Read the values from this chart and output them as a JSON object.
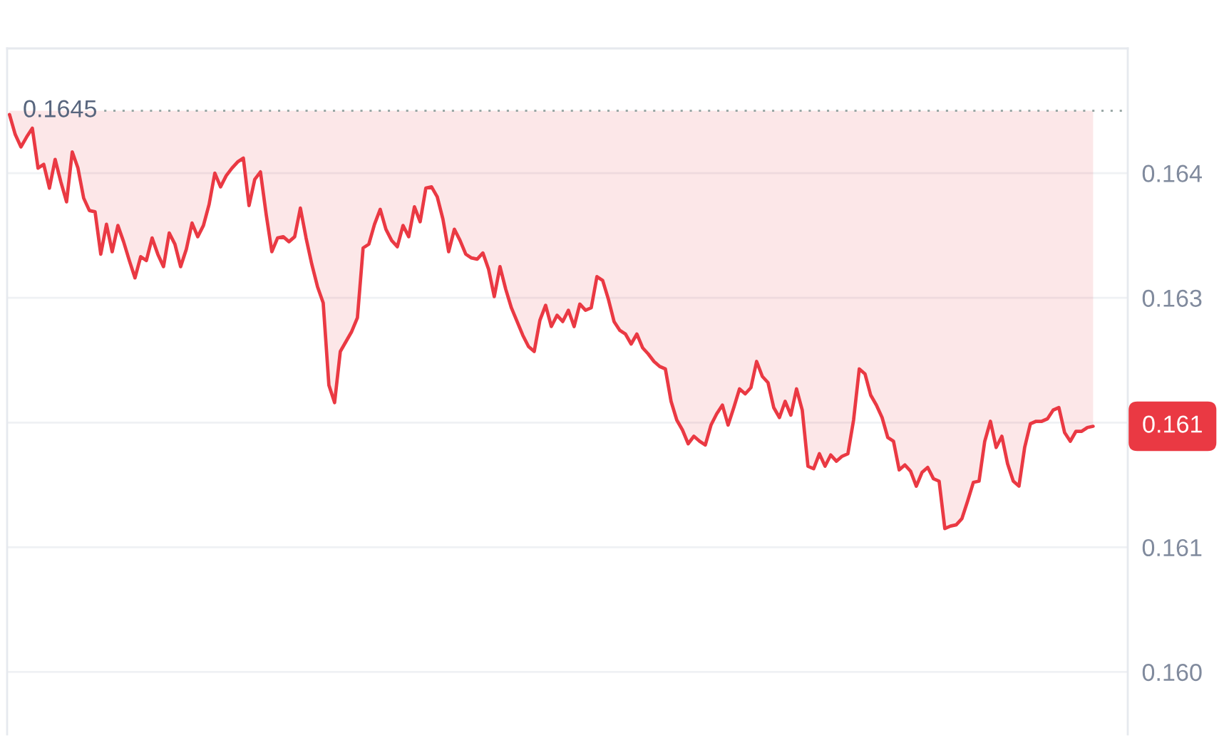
{
  "chart_data": {
    "type": "line",
    "categories": [
      null,
      null,
      null,
      null,
      null,
      null,
      null,
      null,
      null,
      null,
      null,
      null,
      null,
      null,
      null,
      null,
      null,
      null,
      null,
      null,
      null,
      null,
      null,
      null,
      null,
      null,
      null,
      null,
      null,
      null,
      null,
      null,
      null,
      null,
      null,
      null,
      null,
      null,
      null,
      null,
      null,
      null,
      null,
      null,
      null,
      null,
      null,
      null,
      null,
      null,
      null,
      null,
      null,
      null,
      null,
      null,
      null,
      null,
      null,
      null,
      null,
      null,
      null,
      null,
      null,
      null,
      null,
      null,
      null,
      null,
      null,
      null,
      null,
      null,
      null,
      null,
      null,
      null,
      null,
      null,
      null,
      null,
      null,
      null,
      null,
      null,
      null,
      null,
      null,
      null,
      null,
      null,
      null,
      null,
      null,
      null,
      null,
      null,
      null,
      null,
      null,
      null,
      null,
      null,
      null,
      null,
      null,
      null,
      null,
      null,
      null,
      null,
      null,
      null,
      null,
      null,
      null,
      null,
      null,
      null,
      null,
      null,
      null,
      null,
      null,
      null,
      null,
      null,
      null,
      null,
      null,
      null,
      null,
      null,
      null,
      null,
      null,
      null,
      null,
      null,
      null,
      null,
      null,
      null,
      null,
      null,
      null,
      null,
      null,
      null,
      null,
      null,
      null,
      null,
      null,
      null,
      null,
      null,
      null,
      null,
      null,
      null,
      null,
      null,
      null,
      null,
      null,
      null,
      null,
      null,
      null,
      null,
      null,
      null,
      null,
      null,
      null,
      null,
      null,
      null,
      null,
      null,
      null,
      null,
      null,
      null,
      null,
      null,
      null,
      null,
      null
    ],
    "series": [
      {
        "color": "#ea3943",
        "values": [
          0.16447,
          0.16431,
          0.16421,
          0.16429,
          0.16436,
          0.16404,
          0.16407,
          0.16388,
          0.16411,
          0.16393,
          0.16377,
          0.16417,
          0.16404,
          0.1638,
          0.1637,
          0.16369,
          0.16335,
          0.16359,
          0.16337,
          0.16358,
          0.16345,
          0.1633,
          0.16316,
          0.16333,
          0.1633,
          0.16348,
          0.16335,
          0.16325,
          0.16352,
          0.16343,
          0.16325,
          0.16339,
          0.1636,
          0.16349,
          0.16358,
          0.16375,
          0.164,
          0.16389,
          0.16398,
          0.16404,
          0.16409,
          0.16412,
          0.16374,
          0.16395,
          0.16401,
          0.16367,
          0.16337,
          0.16348,
          0.16349,
          0.16345,
          0.16349,
          0.16372,
          0.16348,
          0.16327,
          0.16309,
          0.16296,
          0.1623,
          0.16216,
          0.16257,
          0.16265,
          0.16273,
          0.16284,
          0.1634,
          0.16343,
          0.16359,
          0.16371,
          0.16355,
          0.16346,
          0.16341,
          0.16358,
          0.16349,
          0.16373,
          0.16361,
          0.16388,
          0.16389,
          0.16381,
          0.16363,
          0.16337,
          0.16355,
          0.16346,
          0.16335,
          0.16332,
          0.16331,
          0.16336,
          0.16323,
          0.16301,
          0.16325,
          0.16307,
          0.16292,
          0.16281,
          0.1627,
          0.16261,
          0.16257,
          0.16282,
          0.16294,
          0.16277,
          0.16286,
          0.16281,
          0.1629,
          0.16277,
          0.16295,
          0.1629,
          0.16292,
          0.16317,
          0.16314,
          0.16299,
          0.16281,
          0.16274,
          0.16271,
          0.16263,
          0.16271,
          0.1626,
          0.16255,
          0.16249,
          0.16245,
          0.16243,
          0.16217,
          0.16202,
          0.16194,
          0.16183,
          0.16189,
          0.16185,
          0.16182,
          0.16198,
          0.16207,
          0.16214,
          0.16198,
          0.16212,
          0.16227,
          0.16223,
          0.16228,
          0.16249,
          0.16237,
          0.16232,
          0.16212,
          0.16204,
          0.16217,
          0.16206,
          0.16227,
          0.1621,
          0.16165,
          0.16163,
          0.16175,
          0.16165,
          0.16174,
          0.16169,
          0.16173,
          0.16175,
          0.16202,
          0.16243,
          0.16239,
          0.16222,
          0.16214,
          0.16204,
          0.16188,
          0.16185,
          0.16162,
          0.16166,
          0.16161,
          0.16149,
          0.1616,
          0.16164,
          0.16155,
          0.16153,
          0.16115,
          0.16117,
          0.16118,
          0.16123,
          0.16137,
          0.16152,
          0.16153,
          0.16185,
          0.16201,
          0.1618,
          0.16189,
          0.16167,
          0.16153,
          0.16149,
          0.1618,
          0.16199,
          0.16201,
          0.16201,
          0.16203,
          0.1621,
          0.16212,
          0.16192,
          0.16185,
          0.16193,
          0.16193,
          0.16196,
          0.16197
        ],
        "lower": [
          0.16447,
          0.16431,
          0.16421,
          0.16429,
          0.16436,
          0.16404,
          0.16407,
          0.16388,
          0.16411,
          0.16393,
          0.16377,
          0.16417,
          0.16404,
          0.1638,
          0.1637,
          0.16369,
          0.16335,
          0.16359,
          0.16337,
          0.16358,
          0.16345,
          0.1633,
          0.16316,
          0.16333,
          0.1633,
          0.16348,
          0.16335,
          0.16325,
          0.16352,
          0.16343,
          0.16325,
          0.16339,
          0.1636,
          0.16349,
          0.16358,
          0.16375,
          0.164,
          0.16389,
          0.16398,
          0.16404,
          0.16409,
          0.16412,
          0.16374,
          0.16395,
          0.16401,
          0.16367,
          0.16337,
          0.16348,
          0.16349,
          0.16345,
          0.16349,
          0.16372,
          0.16348,
          0.16327,
          0.16309,
          0.16296,
          0.1623,
          0.16216,
          0.16257,
          0.16265,
          0.16273,
          0.16284,
          0.1634,
          0.16343,
          0.16359,
          0.16371,
          0.16355,
          0.16346,
          0.16341,
          0.16358,
          0.16349,
          0.16373,
          0.16361,
          0.16388,
          0.16389,
          0.16381,
          0.16363,
          0.16337,
          0.16355,
          0.16346,
          0.16335,
          0.16332,
          0.16331,
          0.16336,
          0.16323,
          0.16301,
          0.16325,
          0.16307,
          0.16292,
          0.16281,
          0.1627,
          0.16261,
          0.16257,
          0.16282,
          0.16294,
          0.16277,
          0.16286,
          0.16281,
          0.1629,
          0.16277,
          0.16295,
          0.1629,
          0.16292,
          0.16317,
          0.16314,
          0.16299,
          0.16281,
          0.16274,
          0.16271,
          0.16263,
          0.16271,
          0.1626,
          0.16255,
          0.16249,
          0.16245,
          0.16243,
          0.16217,
          0.16202,
          0.16194,
          0.16183,
          0.16189,
          0.16185,
          0.16182,
          0.16198,
          0.16207,
          0.16214,
          0.16198,
          0.16212,
          0.16227,
          0.16223,
          0.16228,
          0.16249,
          0.16237,
          0.16232,
          0.16212,
          0.16204,
          0.16217,
          0.16206,
          0.16227,
          0.1621,
          0.16165,
          0.16163,
          0.16175,
          0.16165,
          0.16174,
          0.16169,
          0.16173,
          0.16175,
          0.16202,
          0.16243,
          0.16239,
          0.16222,
          0.16214,
          0.16204,
          0.16188,
          0.16185,
          0.16162,
          0.16166,
          0.16161,
          0.16149,
          0.1616,
          0.16164,
          0.16155,
          0.16153,
          0.16115,
          0.16117,
          0.16118,
          0.16123,
          0.16137,
          0.16152,
          0.16153,
          0.16185,
          0.16201,
          0.1618,
          0.16189,
          0.16167,
          0.16153,
          0.16149,
          0.1618,
          0.16199,
          0.16201,
          0.16201,
          0.16203,
          0.1621,
          0.16212,
          0.16192,
          0.16185,
          0.16193,
          0.16193,
          0.16196,
          0.16197
        ],
        "upper": [
          0.1645,
          0.1645,
          0.1645,
          0.1645,
          0.1645,
          0.1645,
          0.1645,
          0.1645,
          0.1645,
          0.1645,
          0.1645,
          0.1645,
          0.1645,
          0.1645,
          0.1645,
          0.1645,
          0.1645,
          0.1645,
          0.1645,
          0.1645,
          0.1645,
          0.1645,
          0.1645,
          0.1645,
          0.1645,
          0.1645,
          0.1645,
          0.1645,
          0.1645,
          0.1645,
          0.1645,
          0.1645,
          0.1645,
          0.1645,
          0.1645,
          0.1645,
          0.1645,
          0.1645,
          0.1645,
          0.1645,
          0.1645,
          0.1645,
          0.1645,
          0.1645,
          0.1645,
          0.1645,
          0.1645,
          0.1645,
          0.1645,
          0.1645,
          0.1645,
          0.1645,
          0.1645,
          0.1645,
          0.1645,
          0.1645,
          0.1645,
          0.1645,
          0.1645,
          0.1645,
          0.1645,
          0.1645,
          0.1645,
          0.1645,
          0.1645,
          0.1645,
          0.1645,
          0.1645,
          0.1645,
          0.1645,
          0.1645,
          0.1645,
          0.1645,
          0.1645,
          0.1645,
          0.1645,
          0.1645,
          0.1645,
          0.1645,
          0.1645,
          0.1645,
          0.1645,
          0.1645,
          0.1645,
          0.1645,
          0.1645,
          0.1645,
          0.1645,
          0.1645,
          0.1645,
          0.1645,
          0.1645,
          0.1645,
          0.1645,
          0.1645,
          0.1645,
          0.1645,
          0.1645,
          0.1645,
          0.1645,
          0.1645,
          0.1645,
          0.1645,
          0.1645,
          0.1645,
          0.1645,
          0.1645,
          0.1645,
          0.1645,
          0.1645,
          0.1645,
          0.1645,
          0.1645,
          0.1645,
          0.1645,
          0.1645,
          0.1645,
          0.1645,
          0.1645,
          0.1645,
          0.1645,
          0.1645,
          0.1645,
          0.1645,
          0.1645,
          0.1645,
          0.1645,
          0.1645,
          0.1645,
          0.1645,
          0.1645,
          0.1645,
          0.1645,
          0.1645,
          0.1645,
          0.1645,
          0.1645,
          0.1645,
          0.1645,
          0.1645,
          0.1645,
          0.1645,
          0.1645,
          0.1645,
          0.1645,
          0.1645,
          0.1645,
          0.1645,
          0.1645,
          0.1645,
          0.1645,
          0.1645,
          0.1645,
          0.1645,
          0.1645,
          0.1645,
          0.1645,
          0.1645,
          0.1645,
          0.1645,
          0.1645,
          0.1645,
          0.1645,
          0.1645,
          0.1645,
          0.1645,
          0.1645,
          0.1645,
          0.1645,
          0.1645,
          0.1645,
          0.1645,
          0.1645,
          0.1645,
          0.1645,
          0.1645,
          0.1645,
          0.1645,
          0.1645,
          0.1645,
          0.1645,
          0.1645,
          0.1645,
          0.1645,
          0.1645,
          0.1645,
          0.1645,
          0.1645,
          0.1645,
          0.1645,
          0.1645
        ]
      }
    ],
    "ylim": [
      0.1595,
      0.165
    ],
    "yticks": [
      {
        "value": 0.16,
        "label": "0.160"
      },
      0.161,
      {
        "value": 0.162,
        "label": null
      },
      0.163,
      0.164
    ],
    "grid": "y",
    "tick_labels": "y",
    "ref_lines": [
      {
        "axis": "y",
        "value": 0.1645,
        "label": "0.1645",
        "color": "#9aa8a6",
        "line_style": "dotted"
      }
    ],
    "annotations": [
      "0.161"
    ]
  }
}
